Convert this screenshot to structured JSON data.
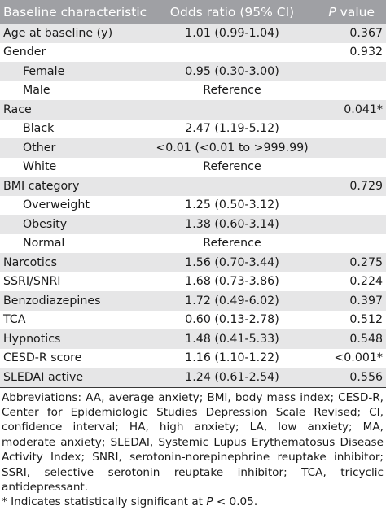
{
  "header": {
    "col1": "Baseline characteristic",
    "col2": "Odds ratio (95% CI)",
    "col3_italic": "P",
    "col3_rest": " value"
  },
  "rows": [
    {
      "label": "Age at baseline (y)",
      "or": "1.01 (0.99-1.04)",
      "p": "0.367",
      "indent": false
    },
    {
      "label": "Gender",
      "or": "",
      "p": "0.932",
      "indent": false
    },
    {
      "label": "Female",
      "or": "0.95 (0.30-3.00)",
      "p": "",
      "indent": true
    },
    {
      "label": "Male",
      "or": "Reference",
      "p": "",
      "indent": true
    },
    {
      "label": "Race",
      "or": "",
      "p": "0.041*",
      "indent": false
    },
    {
      "label": "Black",
      "or": "2.47 (1.19-5.12)",
      "p": "",
      "indent": true
    },
    {
      "label": "Other",
      "or": "<0.01 (<0.01 to >999.99)",
      "p": "",
      "indent": true
    },
    {
      "label": "White",
      "or": "Reference",
      "p": "",
      "indent": true
    },
    {
      "label": "BMI category",
      "or": "",
      "p": "0.729",
      "indent": false
    },
    {
      "label": "Overweight",
      "or": "1.25 (0.50-3.12)",
      "p": "",
      "indent": true
    },
    {
      "label": "Obesity",
      "or": "1.38 (0.60-3.14)",
      "p": "",
      "indent": true
    },
    {
      "label": "Normal",
      "or": "Reference",
      "p": "",
      "indent": true
    },
    {
      "label": "Narcotics",
      "or": "1.56 (0.70-3.44)",
      "p": "0.275",
      "indent": false
    },
    {
      "label": "SSRI/SNRI",
      "or": "1.68 (0.73-3.86)",
      "p": "0.224",
      "indent": false
    },
    {
      "label": "Benzodiazepines",
      "or": "1.72 (0.49-6.02)",
      "p": "0.397",
      "indent": false
    },
    {
      "label": "TCA",
      "or": "0.60 (0.13-2.78)",
      "p": "0.512",
      "indent": false
    },
    {
      "label": "Hypnotics",
      "or": "1.48 (0.41-5.33)",
      "p": "0.548",
      "indent": false
    },
    {
      "label": "CESD-R score",
      "or": "1.16 (1.10-1.22)",
      "p": "<0.001*",
      "indent": false
    },
    {
      "label": "SLEDAI active",
      "or": "1.24 (0.61-2.54)",
      "p": "0.556",
      "indent": false
    }
  ],
  "footnote": {
    "abbreviations": "Abbreviations: AA, average anxiety; BMI, body mass index; CESD-R, Center for Epidemiologic Studies Depression Scale Revised; CI, confidence interval; HA, high anxiety; LA, low anxiety; MA, moderate anxiety; SLEDAI, Systemic Lupus Erythematosus Disease Activity Index; SNRI, serotonin-norepinephrine reuptake inhibitor; SSRI, selective serotonin reuptake inhibitor; TCA, tricyclic antidepressant.",
    "sig_before": "* Indicates statistically significant at ",
    "sig_italic": "P",
    "sig_after": " < 0.05."
  }
}
